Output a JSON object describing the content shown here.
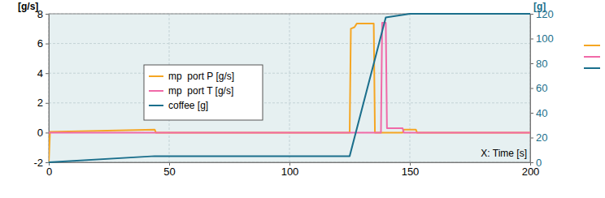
{
  "chart_data": {
    "type": "line",
    "y_label": "[g/s]",
    "y2_label": "[g]",
    "x_label": "X: Time [s]",
    "xlim": [
      0,
      200
    ],
    "xticks": [
      0,
      50,
      100,
      150,
      200
    ],
    "ylim": [
      -2,
      8
    ],
    "yticks": [
      -2,
      0,
      2,
      4,
      6,
      8
    ],
    "y2lim": [
      0,
      120
    ],
    "y2ticks": [
      0,
      20,
      40,
      60,
      80,
      100,
      120
    ],
    "grid": true,
    "legend": "upper left",
    "series": [
      {
        "name": "mp  port P [g/s]",
        "color": "#f5a623",
        "x": [
          0,
          0.5,
          44,
          44.5,
          125,
          125.5,
          127,
          128,
          135,
          135.5,
          147,
          147.5,
          152.5,
          153,
          200
        ],
        "values": [
          -2,
          0.05,
          0.2,
          0,
          0,
          7.0,
          7.1,
          7.35,
          7.35,
          0,
          0,
          0.2,
          0.2,
          0,
          0
        ]
      },
      {
        "name": "mp  port T [g/s]",
        "color": "#f06aa8",
        "x": [
          0,
          138,
          138.5,
          140,
          140.5,
          147,
          147.5,
          200
        ],
        "values": [
          0,
          0,
          7.4,
          7.4,
          0.3,
          0.3,
          0,
          0
        ]
      },
      {
        "name": "coffee [g]",
        "color": "#1b6f8c",
        "axis": "y2",
        "x": [
          0,
          44,
          125,
          140,
          150,
          200
        ],
        "values": [
          0,
          5,
          5,
          117,
          120,
          120
        ]
      }
    ]
  }
}
